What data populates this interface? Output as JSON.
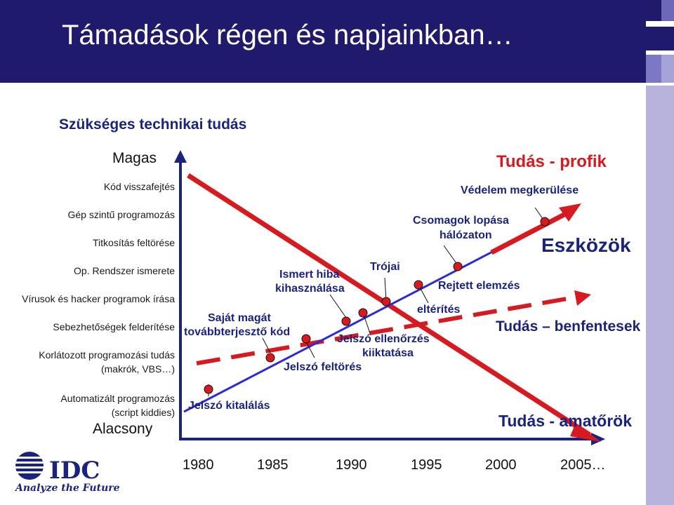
{
  "title": "Támadások régen és napjainkban…",
  "y_axis": {
    "heading": "Szükséges technikai tudás",
    "high": "Magas",
    "low": "Alacsony",
    "levels": [
      "Kód visszafejtés",
      "Gép szintű programozás",
      "Titkosítás feltörése",
      "Op. Rendszer ismerete",
      "Vírusok és hacker programok írása",
      "Sebezhetőségek felderítése",
      "Korlátozott programozási tudás",
      "(makrók, VBS…)",
      "Automatizált programozás",
      "(script kiddies)"
    ]
  },
  "x_axis": {
    "years": [
      "1980",
      "1985",
      "1990",
      "1995",
      "2000",
      "2005…"
    ]
  },
  "attacks": [
    "Jelszó kitalálás",
    "Saját magát",
    "továbbterjesztő kód",
    "Jelszó feltörés",
    "Ismert hiba",
    "kihasználása",
    "Jelszó ellenőrzés",
    "kiiktatása",
    "Trójai",
    "eltérítés",
    "Rejtett elemzés",
    "Csomagok lopása",
    "hálózaton",
    "Védelem  megkerülése"
  ],
  "labels": {
    "profi": "Tudás - profik",
    "eszkozok": "Eszközök",
    "benfentesek": "Tudás – benfentesek",
    "amatorok": "Tudás - amatőrök"
  },
  "logo": {
    "text": "Analyze the Future"
  },
  "colors": {
    "title_bg": "#1f1a6b",
    "arrow": "#d71920",
    "text": "#1a237e",
    "axis": "#1a237e",
    "dot": "#d71920"
  }
}
